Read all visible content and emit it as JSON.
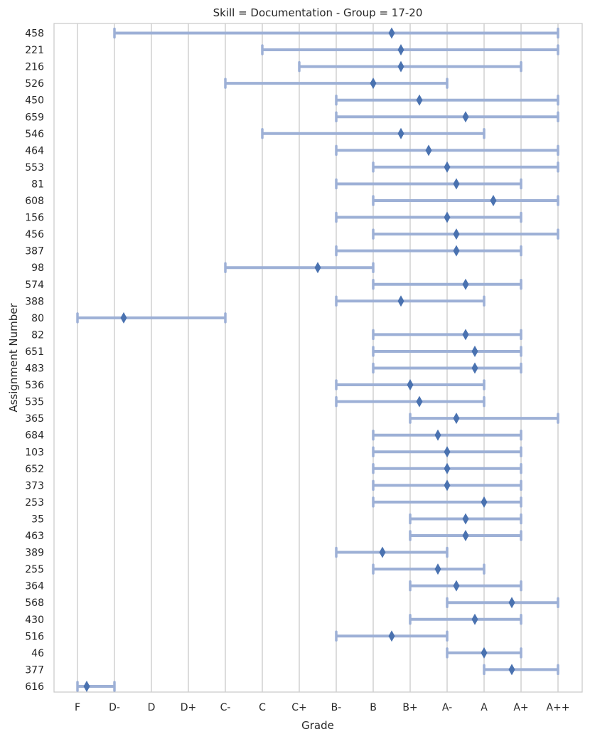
{
  "chart_data": {
    "type": "range",
    "title": "Skill = Documentation - Group = 17-20",
    "xlabel": "Grade",
    "ylabel": "Assignment Number",
    "grades": [
      "F",
      "D-",
      "D",
      "D+",
      "C-",
      "C",
      "C+",
      "B-",
      "B",
      "B+",
      "A-",
      "A",
      "A+",
      "A++"
    ],
    "grid": true,
    "colors": {
      "range": "#9db0d6",
      "marker": "#4a72b0",
      "grid": "#d0d0d0",
      "frame": "#c8c8c8"
    },
    "rows": [
      {
        "id": "458",
        "min": 1,
        "max": 13,
        "mean": 8.5
      },
      {
        "id": "221",
        "min": 5,
        "max": 13,
        "mean": 8.75
      },
      {
        "id": "216",
        "min": 6,
        "max": 12,
        "mean": 8.75
      },
      {
        "id": "526",
        "min": 4,
        "max": 10,
        "mean": 8.0
      },
      {
        "id": "450",
        "min": 7,
        "max": 13,
        "mean": 9.25
      },
      {
        "id": "659",
        "min": 7,
        "max": 13,
        "mean": 10.5
      },
      {
        "id": "546",
        "min": 5,
        "max": 11,
        "mean": 8.75
      },
      {
        "id": "464",
        "min": 7,
        "max": 13,
        "mean": 9.5
      },
      {
        "id": "553",
        "min": 8,
        "max": 13,
        "mean": 10.0
      },
      {
        "id": "81",
        "min": 7,
        "max": 12,
        "mean": 10.25
      },
      {
        "id": "608",
        "min": 8,
        "max": 13,
        "mean": 11.25
      },
      {
        "id": "156",
        "min": 7,
        "max": 12,
        "mean": 10.0
      },
      {
        "id": "456",
        "min": 8,
        "max": 13,
        "mean": 10.25
      },
      {
        "id": "387",
        "min": 7,
        "max": 12,
        "mean": 10.25
      },
      {
        "id": "98",
        "min": 4,
        "max": 8,
        "mean": 6.5
      },
      {
        "id": "574",
        "min": 8,
        "max": 12,
        "mean": 10.5
      },
      {
        "id": "388",
        "min": 7,
        "max": 11,
        "mean": 8.75
      },
      {
        "id": "80",
        "min": 0,
        "max": 4,
        "mean": 1.25
      },
      {
        "id": "82",
        "min": 8,
        "max": 12,
        "mean": 10.5
      },
      {
        "id": "651",
        "min": 8,
        "max": 12,
        "mean": 10.75
      },
      {
        "id": "483",
        "min": 8,
        "max": 12,
        "mean": 10.75
      },
      {
        "id": "536",
        "min": 7,
        "max": 11,
        "mean": 9.0
      },
      {
        "id": "535",
        "min": 7,
        "max": 11,
        "mean": 9.25
      },
      {
        "id": "365",
        "min": 9,
        "max": 13,
        "mean": 10.25
      },
      {
        "id": "684",
        "min": 8,
        "max": 12,
        "mean": 9.75
      },
      {
        "id": "103",
        "min": 8,
        "max": 12,
        "mean": 10.0
      },
      {
        "id": "652",
        "min": 8,
        "max": 12,
        "mean": 10.0
      },
      {
        "id": "373",
        "min": 8,
        "max": 12,
        "mean": 10.0
      },
      {
        "id": "253",
        "min": 8,
        "max": 12,
        "mean": 11.0
      },
      {
        "id": "35",
        "min": 9,
        "max": 12,
        "mean": 10.5
      },
      {
        "id": "463",
        "min": 9,
        "max": 12,
        "mean": 10.5
      },
      {
        "id": "389",
        "min": 7,
        "max": 10,
        "mean": 8.25
      },
      {
        "id": "255",
        "min": 8,
        "max": 11,
        "mean": 9.75
      },
      {
        "id": "364",
        "min": 9,
        "max": 12,
        "mean": 10.25
      },
      {
        "id": "568",
        "min": 10,
        "max": 13,
        "mean": 11.75
      },
      {
        "id": "430",
        "min": 9,
        "max": 12,
        "mean": 10.75
      },
      {
        "id": "516",
        "min": 7,
        "max": 10,
        "mean": 8.5
      },
      {
        "id": "46",
        "min": 10,
        "max": 12,
        "mean": 11.0
      },
      {
        "id": "377",
        "min": 11,
        "max": 13,
        "mean": 11.75
      },
      {
        "id": "616",
        "min": 0,
        "max": 1,
        "mean": 0.25
      }
    ]
  }
}
